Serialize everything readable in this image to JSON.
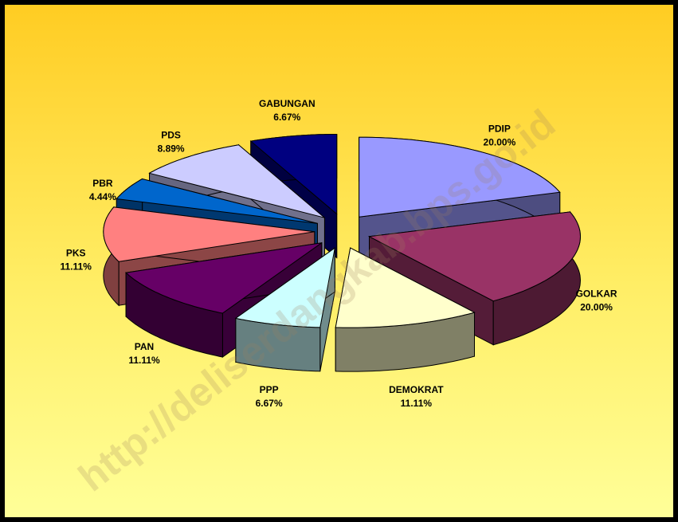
{
  "chart_data": {
    "type": "pie",
    "categories": [
      "PDIP",
      "GOLKAR",
      "DEMOKRAT",
      "PPP",
      "PAN",
      "PKS",
      "PBR",
      "PDS",
      "GABUNGAN"
    ],
    "values": [
      20,
      20,
      11.11,
      6.67,
      11.11,
      11.11,
      4.44,
      8.89,
      6.67
    ],
    "value_labels": [
      "20.00%",
      "20.00%",
      "11.11%",
      "6.67%",
      "11.11%",
      "11.11%",
      "4.44%",
      "8.89%",
      "6.67%"
    ],
    "colors": [
      "#9999ff",
      "#993366",
      "#ffffcc",
      "#ccffff",
      "#660066",
      "#ff8080",
      "#0066cc",
      "#ccccff",
      "#000080"
    ],
    "watermark": "http://deliserdangkab.bps.go.id"
  }
}
